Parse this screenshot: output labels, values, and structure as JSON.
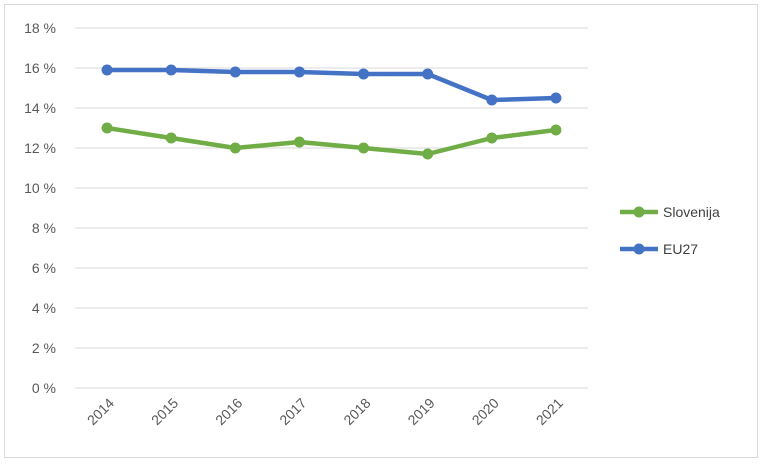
{
  "chart_data": {
    "type": "line",
    "title": "",
    "xlabel": "",
    "ylabel": "",
    "categories": [
      "2014",
      "2015",
      "2016",
      "2017",
      "2018",
      "2019",
      "2020",
      "2021"
    ],
    "y_ticks": [
      "0 %",
      "2 %",
      "4 %",
      "6 %",
      "8 %",
      "10 %",
      "12 %",
      "14 %",
      "16 %",
      "18 %"
    ],
    "ylim": [
      0,
      18
    ],
    "grid": true,
    "legend_position": "right",
    "series": [
      {
        "name": "Slovenija",
        "color": "#70ad47",
        "values": [
          13.0,
          12.5,
          12.0,
          12.3,
          12.0,
          11.7,
          12.5,
          12.9
        ]
      },
      {
        "name": "EU27",
        "color": "#4472c4",
        "values": [
          15.9,
          15.9,
          15.8,
          15.8,
          15.7,
          15.7,
          14.4,
          14.5
        ]
      }
    ]
  }
}
